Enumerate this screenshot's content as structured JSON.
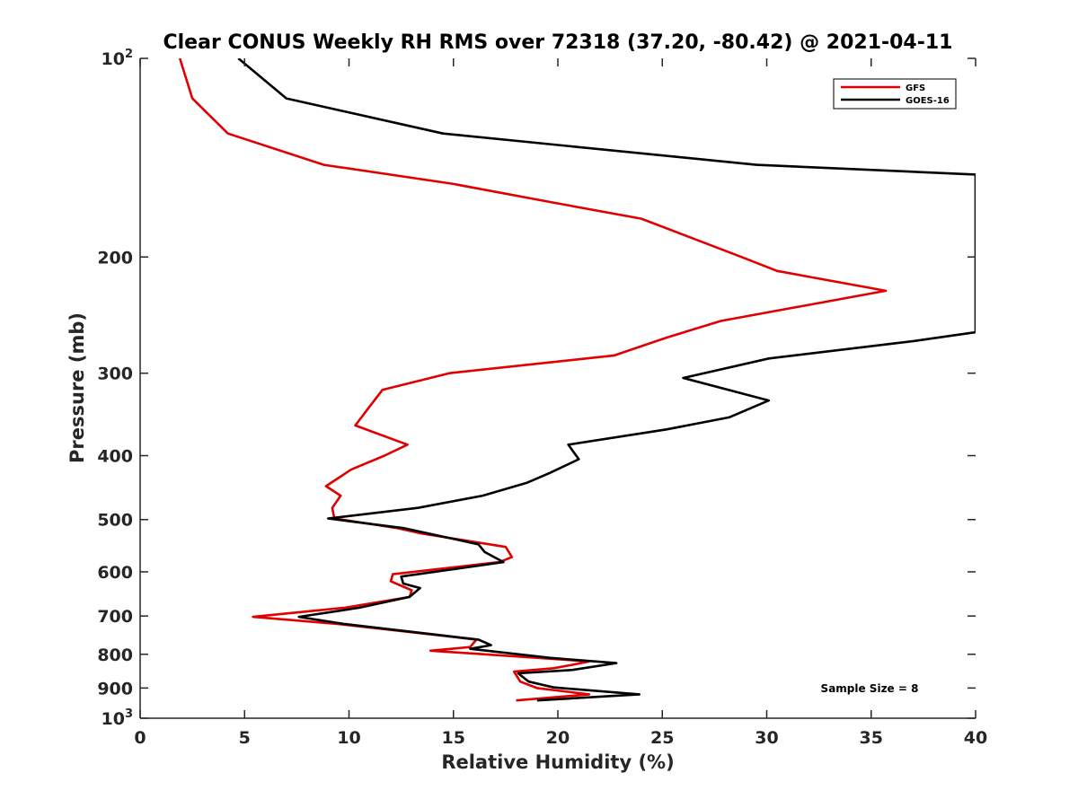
{
  "chart_data": {
    "type": "line",
    "title": "Clear CONUS Weekly RH RMS over 72318 (37.20, -80.42) @ 2021-04-11",
    "xlabel": "Relative Humidity (%)",
    "ylabel": "Pressure (mb)",
    "xlim": [
      0,
      40
    ],
    "ylim": [
      100,
      1000
    ],
    "yscale": "log",
    "y_reversed": true,
    "grid": false,
    "x_ticks": [
      "0",
      "5",
      "10",
      "15",
      "20",
      "25",
      "30",
      "35",
      "40"
    ],
    "y_ticks": [
      {
        "value": 100,
        "base": "10",
        "exp": "2"
      },
      {
        "value": 200,
        "label": "200"
      },
      {
        "value": 300,
        "label": "300"
      },
      {
        "value": 400,
        "label": "400"
      },
      {
        "value": 500,
        "label": "500"
      },
      {
        "value": 600,
        "label": "600"
      },
      {
        "value": 700,
        "label": "700"
      },
      {
        "value": 800,
        "label": "800"
      },
      {
        "value": 900,
        "label": "900"
      },
      {
        "value": 1000,
        "base": "10",
        "exp": "3"
      }
    ],
    "legend_position": "top-right",
    "annotation": "Sample Size = 8",
    "series": [
      {
        "name": "GFS",
        "color": "#e00000",
        "points": [
          [
            1.9,
            100
          ],
          [
            2.5,
            115
          ],
          [
            4.2,
            130
          ],
          [
            8.8,
            145
          ],
          [
            15,
            155
          ],
          [
            19.6,
            165
          ],
          [
            24,
            175
          ],
          [
            28.8,
            200
          ],
          [
            30.5,
            210
          ],
          [
            35.7,
            225
          ],
          [
            27.8,
            250
          ],
          [
            25.2,
            265
          ],
          [
            22.7,
            282
          ],
          [
            14.8,
            300
          ],
          [
            11.6,
            318
          ],
          [
            10.9,
            340
          ],
          [
            10.3,
            360
          ],
          [
            12.8,
            385
          ],
          [
            11.7,
            400
          ],
          [
            10.1,
            420
          ],
          [
            8.9,
            445
          ],
          [
            9.6,
            460
          ],
          [
            9.2,
            480
          ],
          [
            9.3,
            498
          ],
          [
            12.3,
            515
          ],
          [
            13.5,
            525
          ],
          [
            17.5,
            550
          ],
          [
            17.8,
            570
          ],
          [
            17.2,
            580
          ],
          [
            12.1,
            605
          ],
          [
            12.0,
            620
          ],
          [
            13.0,
            640
          ],
          [
            12.9,
            655
          ],
          [
            9.8,
            680
          ],
          [
            5.4,
            702
          ],
          [
            9.5,
            720
          ],
          [
            16.1,
            760
          ],
          [
            15.8,
            780
          ],
          [
            13.9,
            790
          ],
          [
            21.5,
            820
          ],
          [
            20.7,
            830
          ],
          [
            19.8,
            840
          ],
          [
            17.9,
            850
          ],
          [
            18.2,
            880
          ],
          [
            19.0,
            900
          ],
          [
            21.5,
            920
          ],
          [
            18.0,
            940
          ]
        ]
      },
      {
        "name": "GOES-16",
        "color": "#000000",
        "points": [
          [
            4.7,
            100
          ],
          [
            7.0,
            115
          ],
          [
            14.5,
            130
          ],
          [
            29.5,
            145
          ],
          [
            40,
            150
          ],
          [
            40,
            260
          ],
          [
            37.1,
            268
          ],
          [
            30.1,
            285
          ],
          [
            26.0,
            305
          ],
          [
            30.1,
            330
          ],
          [
            28.2,
            350
          ],
          [
            25.2,
            365
          ],
          [
            20.5,
            385
          ],
          [
            21.0,
            405
          ],
          [
            19.6,
            425
          ],
          [
            18.5,
            440
          ],
          [
            16.4,
            460
          ],
          [
            13.3,
            480
          ],
          [
            9.0,
            498
          ],
          [
            12.6,
            515
          ],
          [
            16.2,
            545
          ],
          [
            16.5,
            560
          ],
          [
            17.4,
            580
          ],
          [
            12.5,
            610
          ],
          [
            12.6,
            625
          ],
          [
            13.4,
            635
          ],
          [
            12.9,
            655
          ],
          [
            10.5,
            680
          ],
          [
            7.6,
            702
          ],
          [
            9.8,
            720
          ],
          [
            16.2,
            760
          ],
          [
            16.8,
            775
          ],
          [
            15.8,
            785
          ],
          [
            19.6,
            810
          ],
          [
            22.8,
            825
          ],
          [
            20.7,
            845
          ],
          [
            18.1,
            855
          ],
          [
            18.6,
            880
          ],
          [
            19.8,
            898
          ],
          [
            23.9,
            920
          ],
          [
            19.0,
            940
          ]
        ]
      }
    ]
  }
}
